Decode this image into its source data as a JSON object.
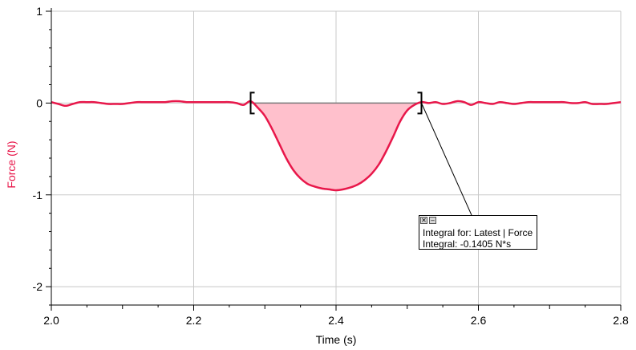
{
  "chart_data": {
    "type": "line",
    "xlabel": "Time (s)",
    "ylabel": "Force (N)",
    "xlim": [
      2.0,
      2.8
    ],
    "ylim": [
      -2.2,
      1.0
    ],
    "x_ticks": [
      {
        "value": 2.0,
        "label": "2.0"
      },
      {
        "value": 2.2,
        "label": "2.2"
      },
      {
        "value": 2.4,
        "label": "2.4"
      },
      {
        "value": 2.6,
        "label": "2.6"
      },
      {
        "value": 2.8,
        "label": "2.8"
      }
    ],
    "y_ticks": [
      {
        "value": 1,
        "label": "1"
      },
      {
        "value": 0,
        "label": "0"
      },
      {
        "value": -1,
        "label": "-1"
      },
      {
        "value": -2,
        "label": "-2"
      }
    ],
    "grid": true,
    "series": [
      {
        "color": "#e8174a",
        "x": [
          2.0,
          2.01,
          2.02,
          2.03,
          2.04,
          2.05,
          2.06,
          2.07,
          2.08,
          2.09,
          2.1,
          2.11,
          2.12,
          2.13,
          2.14,
          2.15,
          2.16,
          2.17,
          2.18,
          2.19,
          2.2,
          2.21,
          2.22,
          2.23,
          2.24,
          2.25,
          2.26,
          2.27,
          2.28,
          2.29,
          2.3,
          2.31,
          2.32,
          2.33,
          2.34,
          2.35,
          2.36,
          2.37,
          2.38,
          2.39,
          2.4,
          2.41,
          2.42,
          2.43,
          2.44,
          2.45,
          2.46,
          2.47,
          2.48,
          2.49,
          2.5,
          2.51,
          2.52,
          2.53,
          2.54,
          2.55,
          2.56,
          2.57,
          2.58,
          2.59,
          2.6,
          2.61,
          2.62,
          2.63,
          2.64,
          2.65,
          2.66,
          2.67,
          2.68,
          2.69,
          2.7,
          2.71,
          2.72,
          2.73,
          2.74,
          2.75,
          2.76,
          2.77,
          2.78,
          2.79,
          2.8
        ],
        "y": [
          0.01,
          -0.01,
          -0.03,
          -0.01,
          0.01,
          0.01,
          0.01,
          0.0,
          -0.01,
          -0.01,
          -0.01,
          0.0,
          0.01,
          0.01,
          0.01,
          0.01,
          0.01,
          0.02,
          0.02,
          0.01,
          0.01,
          0.01,
          0.01,
          0.01,
          0.01,
          0.01,
          0.0,
          -0.02,
          0.02,
          -0.05,
          -0.14,
          -0.28,
          -0.44,
          -0.6,
          -0.73,
          -0.82,
          -0.88,
          -0.91,
          -0.93,
          -0.94,
          -0.95,
          -0.94,
          -0.92,
          -0.89,
          -0.84,
          -0.77,
          -0.67,
          -0.53,
          -0.37,
          -0.2,
          -0.08,
          -0.02,
          0.01,
          0.0,
          0.01,
          -0.01,
          0.0,
          0.02,
          0.01,
          -0.02,
          0.01,
          0.0,
          -0.01,
          0.01,
          0.0,
          -0.01,
          0.0,
          0.01,
          0.01,
          0.01,
          0.01,
          0.01,
          0.01,
          0.0,
          0.0,
          0.01,
          -0.01,
          -0.01,
          -0.01,
          0.0,
          0.01
        ]
      }
    ],
    "integral_region": {
      "x_start": 2.28,
      "x_end": 2.52,
      "fill_color": "#ffc0cc"
    },
    "annotation": {
      "line1": "Integral for: Latest | Force",
      "line2": "Integral: -0.1405 N*s",
      "close_glyph": "✕",
      "minimize_glyph": "–",
      "anchor_x": 2.52,
      "anchor_y": 0.0
    }
  }
}
